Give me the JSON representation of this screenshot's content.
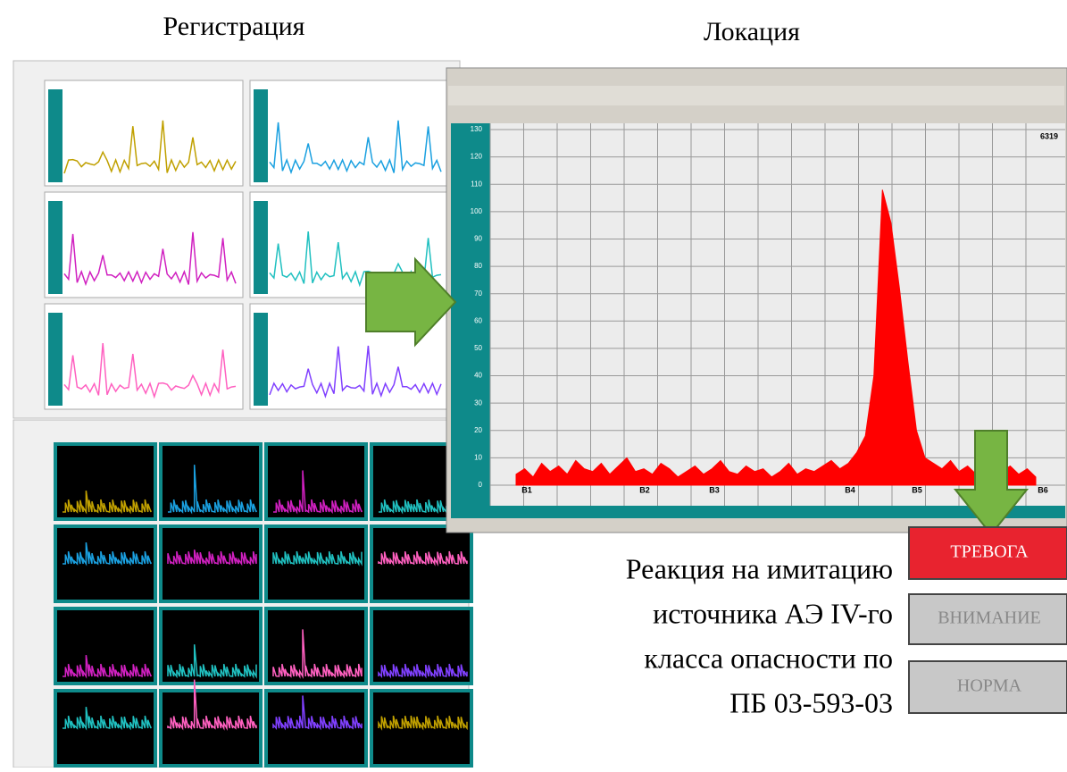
{
  "titles": {
    "registration": "Регистрация",
    "location": "Локация"
  },
  "location_window": {
    "counter": "6319",
    "ylim": [
      0,
      130
    ],
    "yticks": [
      0,
      10,
      20,
      30,
      40,
      50,
      60,
      70,
      80,
      90,
      100,
      110,
      120,
      130
    ],
    "sensors": [
      "В1",
      "В2",
      "В3",
      "В4",
      "В5",
      "В6"
    ],
    "amplitude": {
      "color": "#ff0000",
      "values": [
        4,
        6,
        3,
        8,
        5,
        7,
        4,
        9,
        6,
        5,
        8,
        4,
        7,
        10,
        5,
        6,
        4,
        8,
        6,
        3,
        5,
        7,
        4,
        6,
        9,
        5,
        4,
        7,
        5,
        6,
        3,
        5,
        8,
        4,
        6,
        5,
        7,
        9,
        6,
        8,
        12,
        18,
        40,
        108,
        96,
        72,
        45,
        20,
        10,
        8,
        6,
        9,
        5,
        7,
        4,
        6,
        3,
        5,
        7,
        4,
        6,
        3
      ]
    }
  },
  "caption": [
    "Реакция на имитацию",
    "источника АЭ IV-го",
    "класса опасности по",
    "ПБ 03-593-03"
  ],
  "status": {
    "alarm": "ТРЕВОГА",
    "warning": "ВНИМАНИЕ",
    "normal": "НОРМА"
  }
}
